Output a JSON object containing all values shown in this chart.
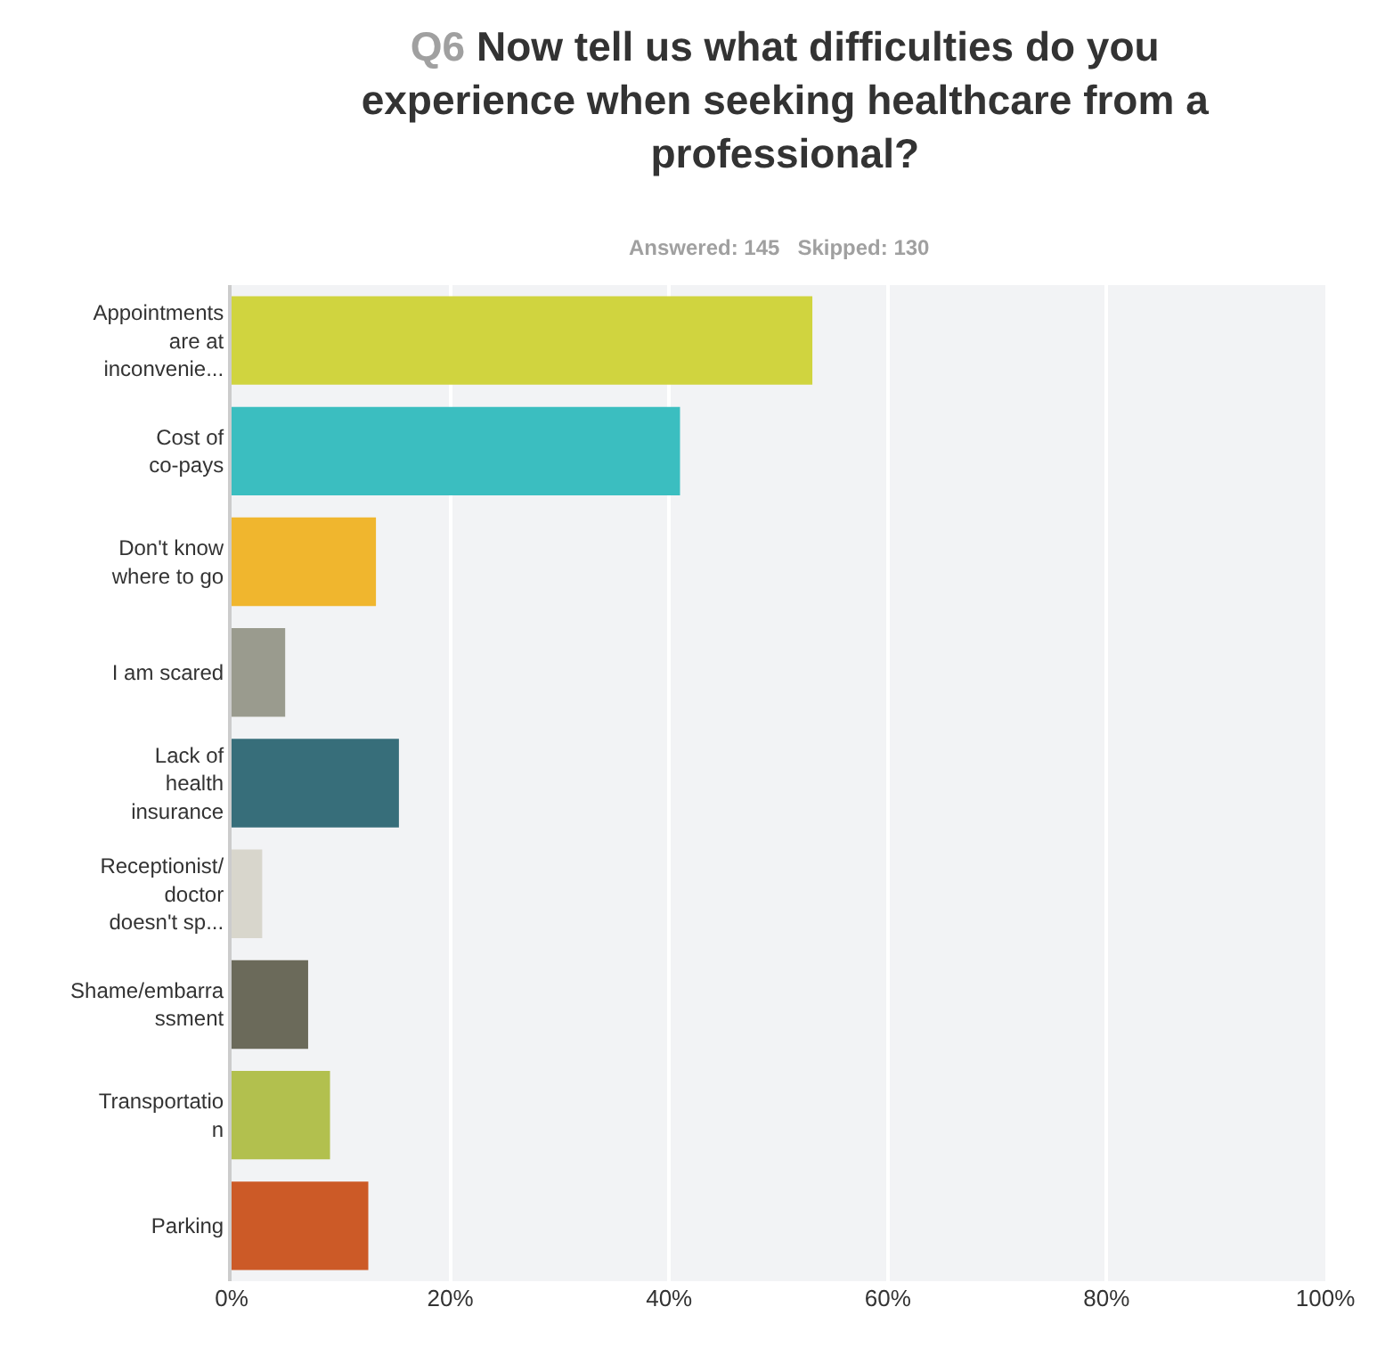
{
  "chart_data": {
    "type": "bar",
    "orientation": "horizontal",
    "title": "Q6 Now tell us what difficulties do you experience when seeking healthcare from a professional?",
    "subtitle": "Answered: 145   Skipped: 130",
    "categories": [
      "Appointments\nare at\ninconvenie...",
      "Cost of\nco-pays",
      "Don't know\nwhere to go",
      "I am scared",
      "Lack of\nhealth\ninsurance",
      "Receptionist/\ndoctor\ndoesn't sp...",
      "Shame/embarra\nssment",
      "Transportatio\nn",
      "Parking"
    ],
    "values": [
      53.1,
      41.0,
      13.2,
      4.9,
      15.3,
      2.8,
      7.0,
      9.0,
      12.5
    ],
    "colors": [
      "#d0d43f",
      "#3bbec0",
      "#f0b62e",
      "#9a9b8e",
      "#376e7a",
      "#d8d6cc",
      "#6b6a5a",
      "#b2c04e",
      "#cc5a27"
    ],
    "xlim": [
      0,
      100
    ],
    "xticks": [
      {
        "value": 0,
        "label": "0%"
      },
      {
        "value": 20,
        "label": "20%"
      },
      {
        "value": 40,
        "label": "40%"
      },
      {
        "value": 60,
        "label": "60%"
      },
      {
        "value": 80,
        "label": "80%"
      },
      {
        "value": 100,
        "label": "100%"
      }
    ],
    "grid": "x",
    "legend": false
  }
}
